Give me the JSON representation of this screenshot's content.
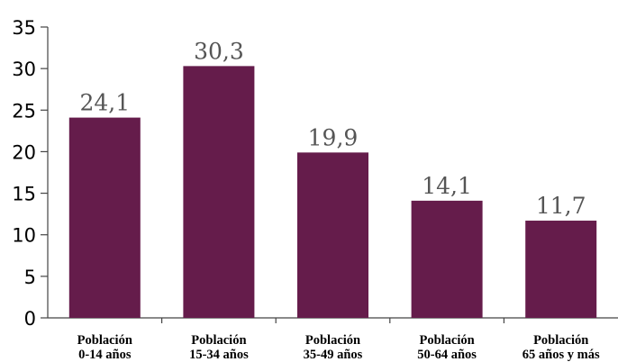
{
  "chart_data": {
    "type": "bar",
    "categories": [
      [
        "Población",
        "0-14 años"
      ],
      [
        "Población",
        "15-34 años"
      ],
      [
        "Población",
        "35-49 años"
      ],
      [
        "Población",
        "50-64 años"
      ],
      [
        "Población",
        "65 años y más"
      ]
    ],
    "values": [
      24.1,
      30.3,
      19.9,
      14.1,
      11.7
    ],
    "data_labels": [
      "24,1",
      "30,3",
      "19,9",
      "14,1",
      "11,7"
    ],
    "ylim": [
      0,
      35
    ],
    "yticks": [
      "0",
      "5",
      "10",
      "15",
      "20",
      "25",
      "30",
      "35"
    ],
    "title": "",
    "xlabel": "",
    "ylabel": "",
    "grid": false,
    "legend": "none",
    "bar_color": "#651c4b"
  }
}
